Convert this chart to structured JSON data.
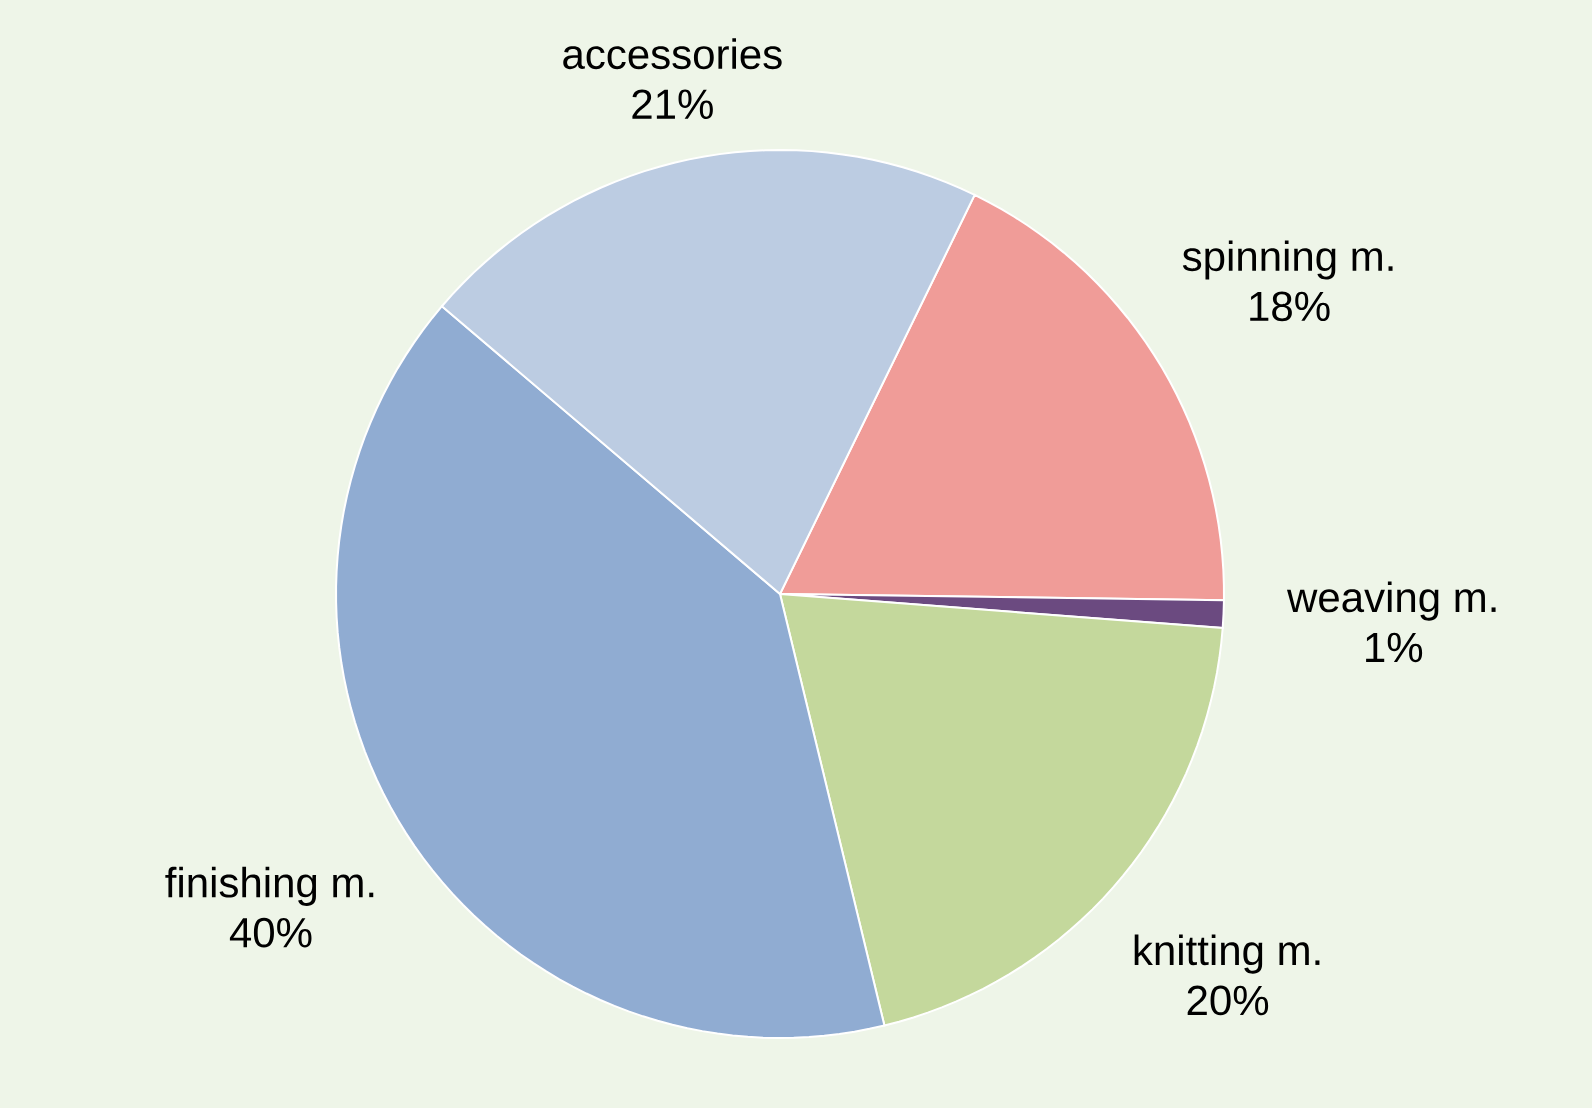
{
  "chart_data": {
    "type": "pie",
    "categories": [
      "spinning m.",
      "weaving m.",
      "knitting m.",
      "finishing m.",
      "accessories"
    ],
    "values": [
      18,
      1,
      20,
      40,
      21
    ],
    "colors": [
      "#f09c98",
      "#6b4a80",
      "#c4d89c",
      "#90acd2",
      "#bccce2"
    ],
    "value_labels": [
      "18%",
      "1%",
      "20%",
      "40%",
      "21%"
    ]
  }
}
